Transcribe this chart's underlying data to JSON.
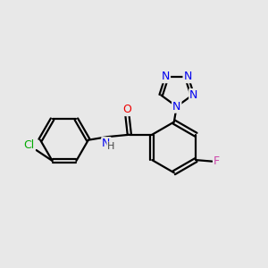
{
  "background_color": "#e8e8e8",
  "atom_colors": {
    "N": "#0000ee",
    "O": "#ee0000",
    "Cl": "#00aa00",
    "F": "#cc44aa",
    "H": "#444444",
    "C": "#000000"
  },
  "font_size": 9,
  "figsize": [
    3.0,
    3.0
  ],
  "dpi": 100,
  "lw": 1.6
}
